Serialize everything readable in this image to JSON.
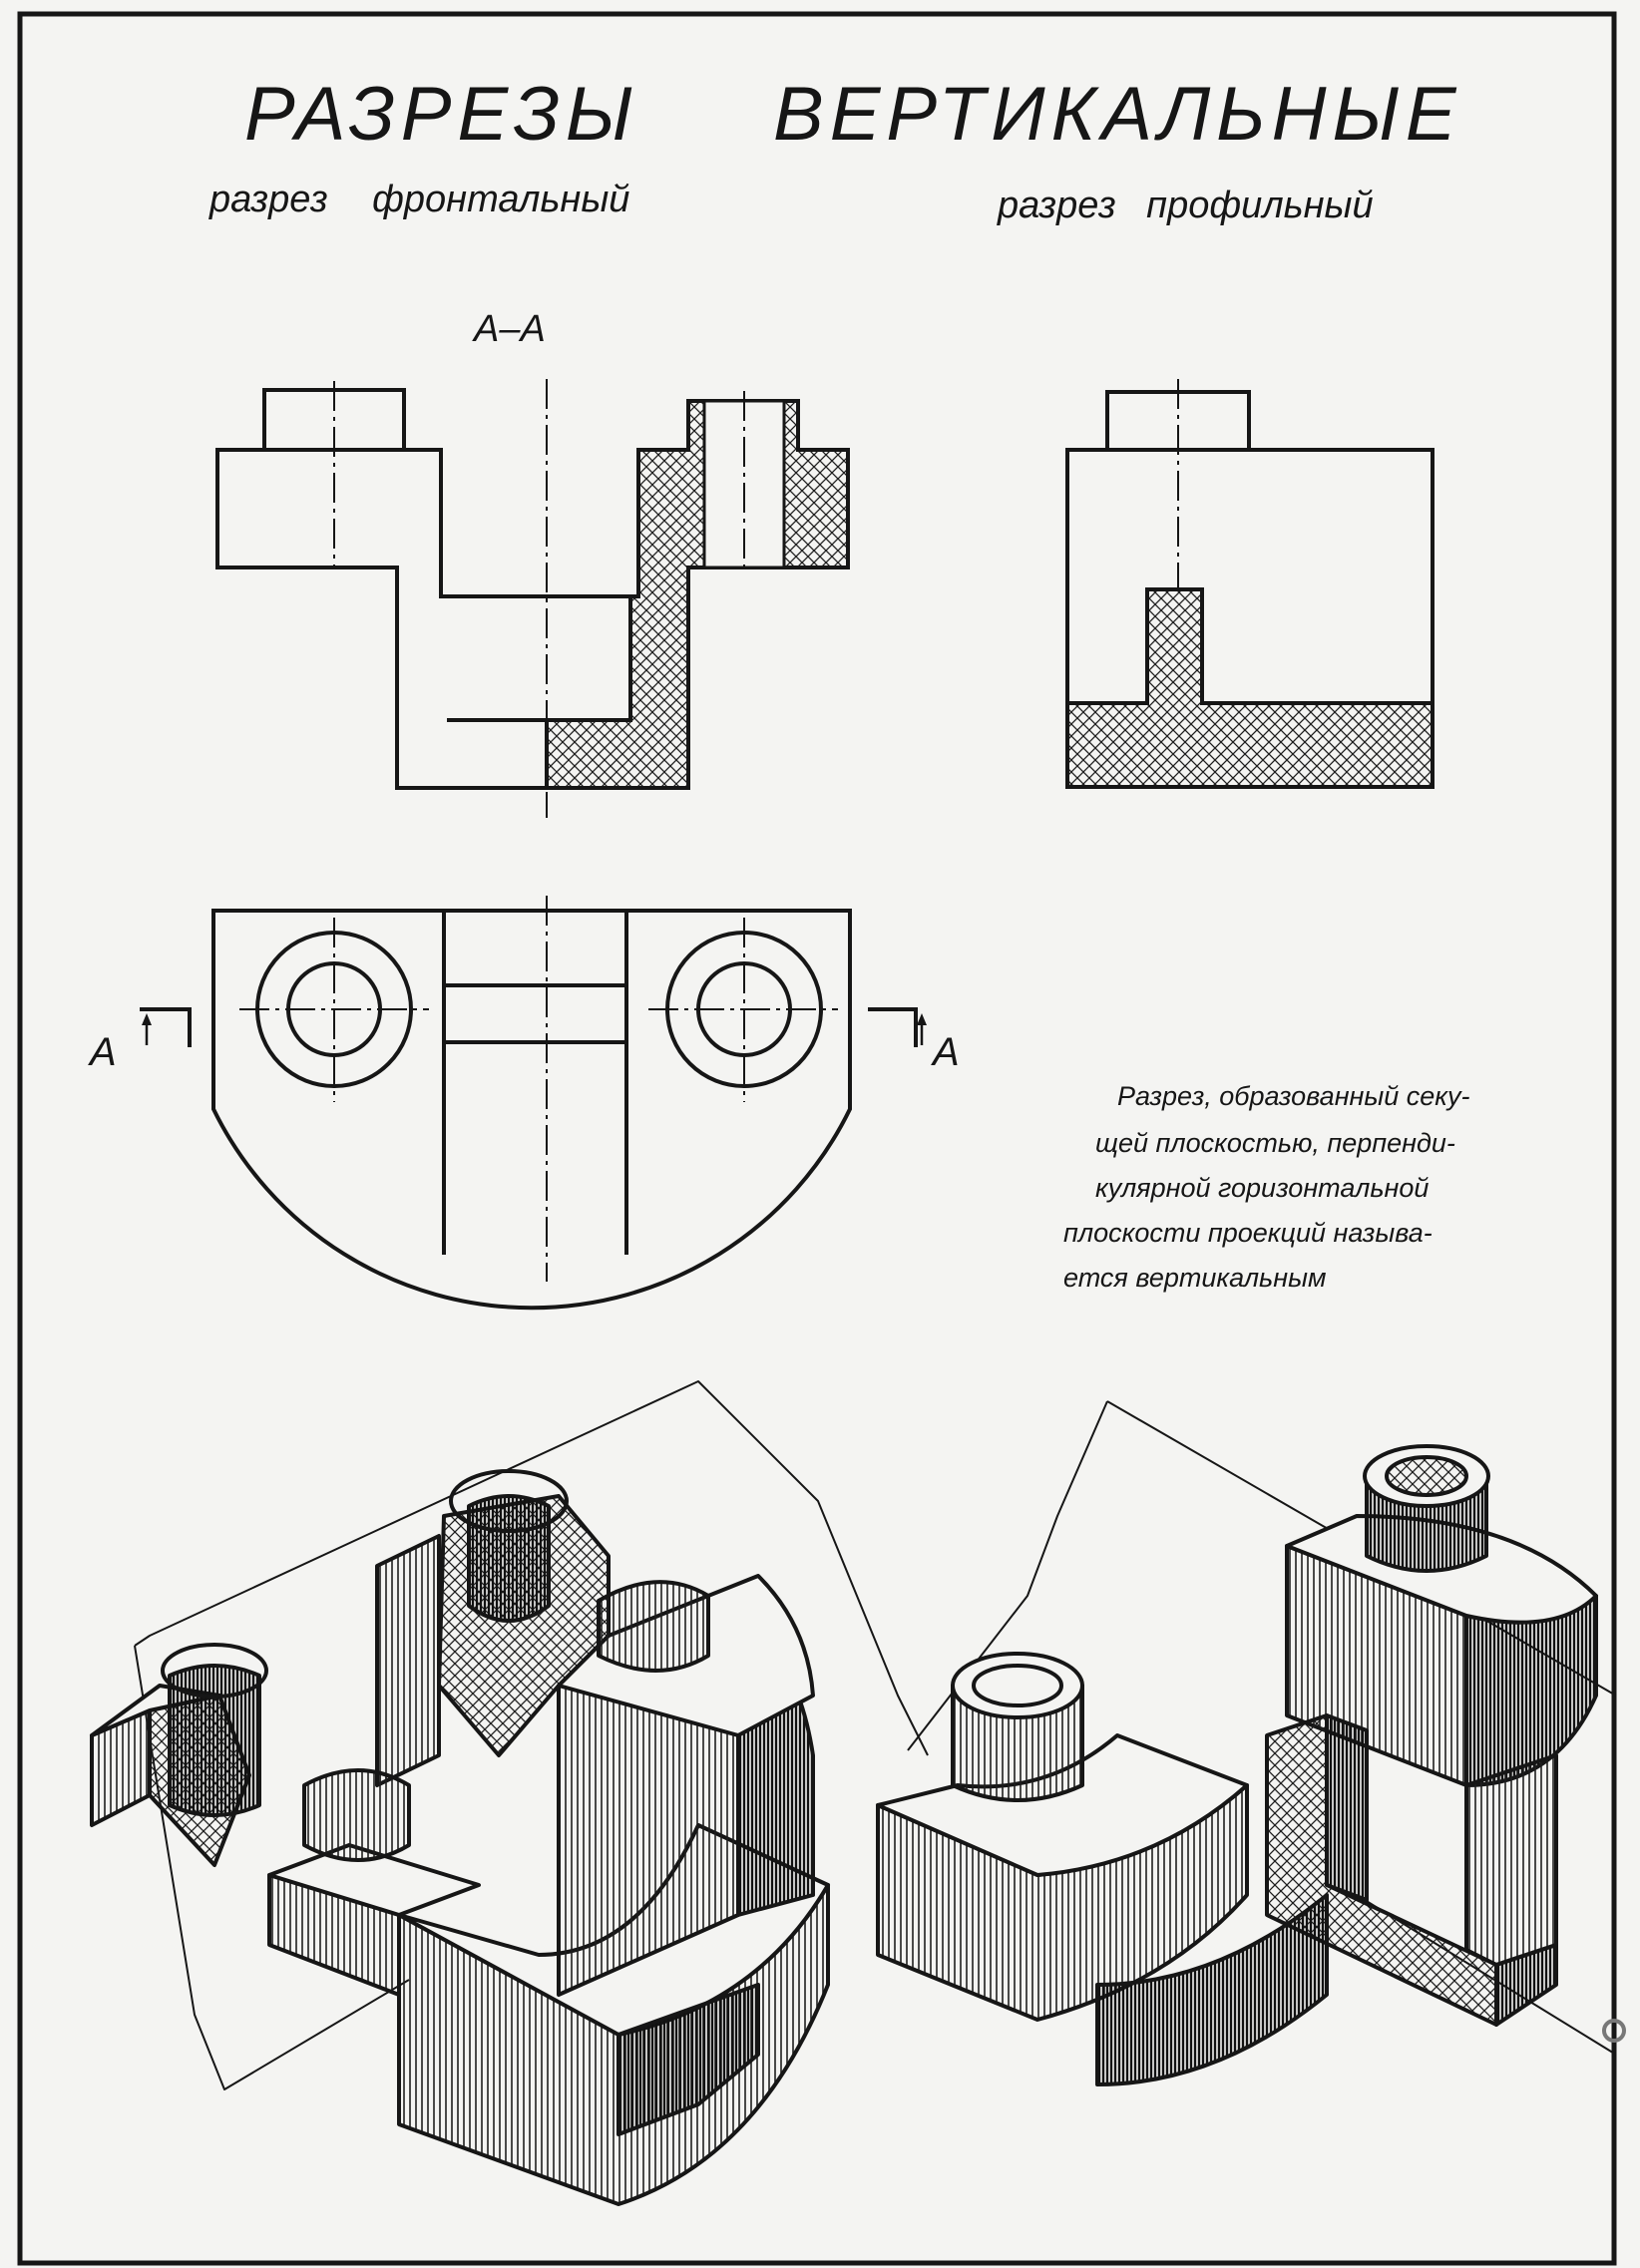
{
  "title": {
    "left": "РАЗРЕЗЫ",
    "right": "ВЕРТИКАЛЬНЫЕ"
  },
  "subtitles": {
    "frontal": "разрез фронтальный",
    "profile": "разрез профильный"
  },
  "section_label": "А–А",
  "cut_marker_left": "А",
  "cut_marker_right": "А",
  "definition_lines": [
    "Разрез, образованный секу-",
    "щей плоскостью, перпенди-",
    "кулярной горизонтальной",
    "плоскости проекций называ-",
    "ется вертикальным"
  ],
  "colors": {
    "paper": "#f4f4f2",
    "ink": "#161616",
    "hatch": "#1e1e1e",
    "backdrop": "#e9e9e7"
  }
}
